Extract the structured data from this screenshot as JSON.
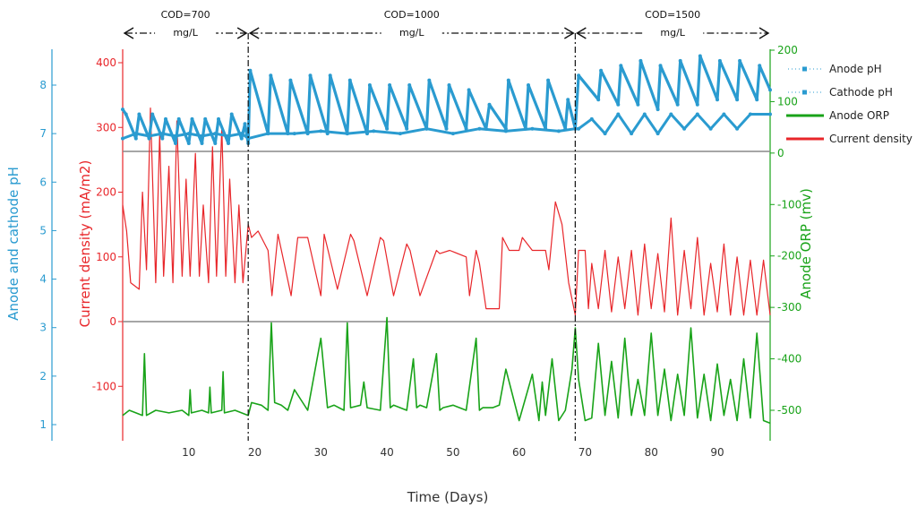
{
  "chart_data": {
    "type": "line",
    "xlabel": "Time (Days)",
    "xlim": [
      0,
      98
    ],
    "x_ticks": [
      10,
      20,
      30,
      40,
      50,
      60,
      70,
      80,
      90
    ],
    "axes": {
      "ph": {
        "label": "Anode and cathode pH",
        "range": [
          1,
          8.5
        ],
        "ticks": [
          1,
          2,
          3,
          4,
          5,
          6,
          7,
          8
        ],
        "color": "#2a9bd0"
      },
      "current": {
        "label": "Current density (mA/m2)",
        "range": [
          -150,
          400
        ],
        "ticks": [
          -100,
          0,
          100,
          200,
          300,
          400
        ],
        "color": "#e8262a"
      },
      "orp": {
        "label": "Anode ORP (mv)",
        "range": [
          -550,
          200
        ],
        "ticks": [
          -500,
          -400,
          -300,
          -200,
          -100,
          0,
          100,
          200
        ],
        "color": "#19a319"
      }
    },
    "periods": [
      {
        "label_line1": "COD=700",
        "label_line2": "mg/L",
        "start": 0,
        "end": 19
      },
      {
        "label_line1": "COD=1000",
        "label_line2": "mg/L",
        "start": 19,
        "end": 68.5
      },
      {
        "label_line1": "COD=1500",
        "label_line2": "mg/L",
        "start": 68.5,
        "end": 98
      }
    ],
    "legend": {
      "placement": "right",
      "entries": [
        {
          "name": "Anode pH",
          "color": "#2a9bd0",
          "style": "markers"
        },
        {
          "name": "Cathode pH",
          "color": "#2a9bd0",
          "style": "markers"
        },
        {
          "name": "Anode ORP",
          "color": "#19a319",
          "style": "line"
        },
        {
          "name": "Current density",
          "color": "#e8262a",
          "style": "line"
        }
      ]
    },
    "series": [
      {
        "name": "Anode pH",
        "axis": "ph",
        "x": [
          0,
          0.5,
          2,
          2.5,
          4,
          4.5,
          6,
          6.5,
          8,
          8.5,
          10,
          10.5,
          12,
          12.5,
          14,
          14.5,
          16,
          16.5,
          18,
          18.5,
          19,
          19.3,
          22,
          22.4,
          25,
          25.4,
          28,
          28.4,
          31,
          31.4,
          34,
          34.4,
          37,
          37.4,
          40,
          40.4,
          43,
          43.4,
          46,
          46.4,
          49,
          49.4,
          52,
          52.4,
          55,
          55.5,
          58,
          58.4,
          61,
          61.4,
          64,
          64.4,
          67,
          67.4,
          68.5,
          69,
          72,
          72.4,
          75,
          75.4,
          78,
          78.4,
          81,
          81.4,
          84,
          84.4,
          87,
          87.4,
          90,
          90.4,
          93,
          93.4,
          96,
          96.4,
          98
        ],
        "values": [
          7.5,
          7.4,
          6.9,
          7.4,
          6.9,
          7.4,
          6.9,
          7.3,
          6.8,
          7.3,
          6.8,
          7.3,
          6.8,
          7.3,
          6.8,
          7.3,
          6.8,
          7.4,
          6.9,
          7.2,
          6.8,
          8.3,
          7.0,
          8.2,
          7.0,
          8.1,
          7.0,
          8.2,
          7.0,
          8.2,
          7.0,
          8.1,
          7.0,
          8.0,
          7.1,
          8.0,
          7.1,
          8.0,
          7.1,
          8.1,
          7.1,
          8.0,
          7.1,
          7.9,
          7.1,
          7.6,
          7.1,
          8.1,
          7.1,
          8.0,
          7.1,
          8.1,
          7.1,
          7.7,
          7.1,
          8.2,
          7.7,
          8.3,
          7.6,
          8.4,
          7.6,
          8.5,
          7.5,
          8.4,
          7.6,
          8.5,
          7.6,
          8.6,
          7.7,
          8.5,
          7.7,
          8.5,
          7.7,
          8.4,
          7.9
        ]
      },
      {
        "name": "Cathode pH",
        "axis": "ph",
        "x": [
          0,
          2,
          4,
          6,
          8,
          10,
          12,
          14,
          16,
          18,
          19,
          22,
          26,
          30,
          34,
          38,
          42,
          46,
          50,
          54,
          58,
          62,
          66,
          68.5,
          69,
          71,
          73,
          75,
          77,
          79,
          81,
          83,
          85,
          87,
          89,
          91,
          93,
          95,
          98
        ],
        "values": [
          6.9,
          7.0,
          6.95,
          7.0,
          6.95,
          7.0,
          6.95,
          7.0,
          6.95,
          7.0,
          6.9,
          7.0,
          7.0,
          7.05,
          7.0,
          7.05,
          7.0,
          7.1,
          7.0,
          7.1,
          7.05,
          7.1,
          7.05,
          7.1,
          7.1,
          7.3,
          7.0,
          7.4,
          7.0,
          7.4,
          7.0,
          7.4,
          7.1,
          7.4,
          7.1,
          7.4,
          7.1,
          7.4,
          7.4
        ]
      },
      {
        "name": "Current density",
        "axis": "current",
        "x": [
          0,
          0.6,
          1.2,
          2.5,
          3,
          3.6,
          4.2,
          5,
          5.6,
          6.2,
          7,
          7.6,
          8.2,
          9,
          9.6,
          10.2,
          11,
          11.6,
          12.2,
          13,
          13.6,
          14.2,
          15,
          15.6,
          16.2,
          17,
          17.6,
          18.2,
          19,
          19.5,
          20.5,
          22,
          22.6,
          23.5,
          25.5,
          26.5,
          28,
          30,
          30.5,
          32.5,
          34.5,
          35,
          37,
          39,
          39.5,
          41,
          43,
          43.5,
          45,
          47.5,
          48,
          49.5,
          52,
          52.5,
          53.5,
          54,
          55,
          56,
          57,
          57.5,
          58.5,
          60,
          60.5,
          62,
          63,
          64,
          64.5,
          65.5,
          66.5,
          67.5,
          68.5,
          69,
          70,
          70.5,
          71,
          72,
          73,
          74,
          75,
          76,
          77,
          78,
          79,
          80,
          81,
          82,
          83,
          84,
          85,
          86,
          87,
          88,
          89,
          90,
          91,
          92,
          93,
          94,
          95,
          96,
          97,
          98
        ],
        "values": [
          180,
          140,
          60,
          50,
          200,
          80,
          330,
          60,
          290,
          70,
          240,
          60,
          310,
          70,
          220,
          70,
          260,
          70,
          180,
          60,
          270,
          70,
          300,
          70,
          220,
          60,
          180,
          60,
          150,
          130,
          140,
          110,
          40,
          135,
          40,
          130,
          130,
          40,
          135,
          50,
          135,
          125,
          40,
          130,
          125,
          40,
          120,
          110,
          40,
          110,
          105,
          110,
          100,
          40,
          110,
          90,
          20,
          20,
          20,
          130,
          110,
          110,
          130,
          110,
          110,
          110,
          80,
          185,
          150,
          60,
          10,
          110,
          110,
          20,
          90,
          20,
          110,
          15,
          100,
          20,
          110,
          10,
          120,
          20,
          105,
          15,
          160,
          10,
          110,
          20,
          130,
          10,
          90,
          15,
          120,
          10,
          100,
          10,
          95,
          10,
          95,
          10
        ]
      },
      {
        "name": "Anode ORP",
        "axis": "orp",
        "x": [
          0,
          1,
          2,
          3,
          3.3,
          3.6,
          5,
          7,
          9,
          10,
          10.2,
          10.4,
          12,
          13,
          13.2,
          13.4,
          15,
          15.2,
          15.4,
          17,
          19,
          19.5,
          21,
          22,
          22.5,
          23,
          24,
          25,
          26,
          28,
          30,
          31,
          32,
          33.5,
          34,
          34.5,
          36,
          36.5,
          37,
          39,
          40,
          40.5,
          41,
          43,
          44,
          44.5,
          45,
          46,
          47.5,
          48,
          48.5,
          50,
          52,
          53.5,
          54,
          54.5,
          56,
          57,
          58,
          60,
          62,
          63,
          63.5,
          64,
          65,
          66,
          67,
          68,
          68.5,
          69,
          70,
          71,
          72,
          73,
          74,
          75,
          76,
          77,
          78,
          79,
          80,
          81,
          82,
          83,
          84,
          85,
          86,
          87,
          88,
          89,
          90,
          91,
          92,
          93,
          94,
          95,
          96,
          97,
          98
        ],
        "values": [
          -510,
          -500,
          -505,
          -510,
          -390,
          -510,
          -500,
          -505,
          -500,
          -510,
          -460,
          -505,
          -500,
          -505,
          -455,
          -505,
          -500,
          -425,
          -505,
          -500,
          -510,
          -485,
          -490,
          -500,
          -330,
          -485,
          -490,
          -500,
          -460,
          -500,
          -360,
          -495,
          -490,
          -500,
          -330,
          -495,
          -490,
          -445,
          -495,
          -500,
          -320,
          -495,
          -490,
          -500,
          -400,
          -495,
          -490,
          -495,
          -390,
          -500,
          -495,
          -490,
          -500,
          -360,
          -500,
          -495,
          -495,
          -490,
          -420,
          -520,
          -430,
          -520,
          -445,
          -510,
          -400,
          -520,
          -500,
          -420,
          -340,
          -440,
          -520,
          -515,
          -370,
          -510,
          -405,
          -515,
          -360,
          -510,
          -440,
          -510,
          -350,
          -510,
          -420,
          -520,
          -430,
          -510,
          -340,
          -515,
          -430,
          -520,
          -410,
          -510,
          -440,
          -520,
          -400,
          -515,
          -350,
          -520,
          -525
        ]
      }
    ]
  }
}
